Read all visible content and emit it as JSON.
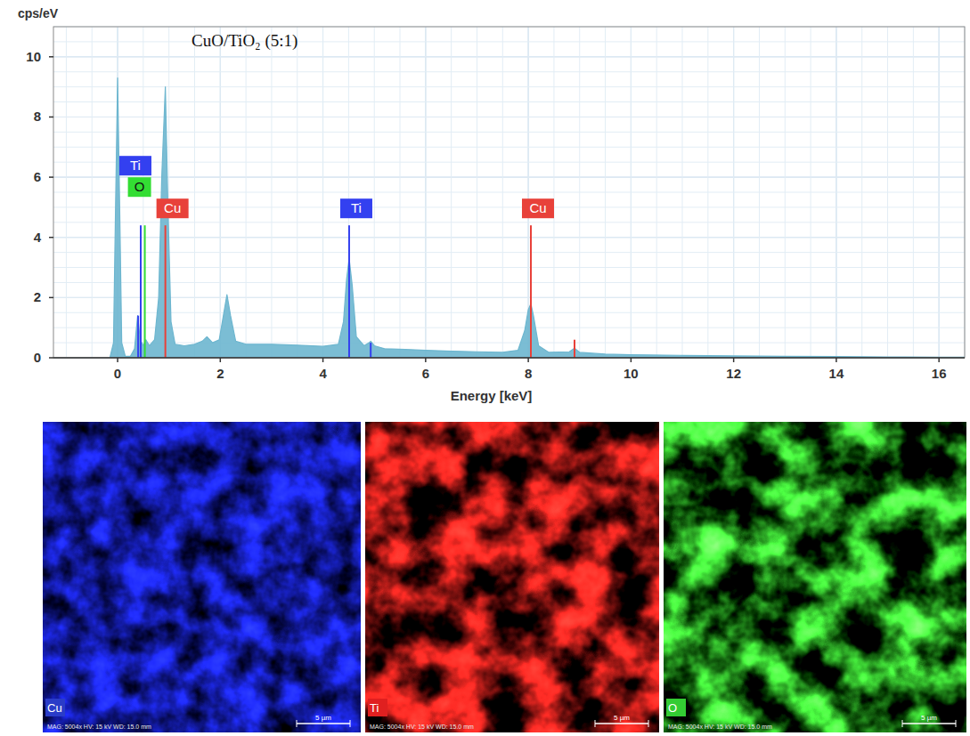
{
  "chart_data": {
    "type": "area",
    "title": "CuO/TiO₂ (5:1)",
    "y_label": "cps/eV",
    "x_label": "Energy [keV]",
    "xlim": [
      -1.25,
      16.5
    ],
    "ylim": [
      0,
      11
    ],
    "xticks": [
      0,
      2,
      4,
      6,
      8,
      10,
      12,
      14,
      16
    ],
    "yticks": [
      0,
      2,
      4,
      6,
      8,
      10
    ],
    "grid": true,
    "series": [
      {
        "color": "#6db6cf",
        "x": [
          -0.15,
          -0.08,
          -0.04,
          0,
          0.04,
          0.08,
          0.15,
          0.25,
          0.33,
          0.39,
          0.44,
          0.5,
          0.55,
          0.62,
          0.72,
          0.8,
          0.86,
          0.93,
          0.98,
          1.04,
          1.12,
          1.3,
          1.5,
          1.65,
          1.74,
          1.85,
          1.98,
          2.05,
          2.13,
          2.2,
          2.3,
          2.5,
          3,
          3.5,
          4,
          4.3,
          4.4,
          4.46,
          4.51,
          4.57,
          4.65,
          4.8,
          4.9,
          4.93,
          5.0,
          5.2,
          5.6,
          6,
          6.5,
          7,
          7.5,
          7.8,
          7.93,
          8,
          8.05,
          8.1,
          8.2,
          8.4,
          8.8,
          8.9,
          9.0,
          9.5,
          10,
          11,
          12,
          13,
          14,
          15,
          16,
          16.5
        ],
        "values": [
          0,
          0.5,
          5,
          9.3,
          5,
          0.5,
          0.05,
          0.05,
          0.3,
          1.4,
          0.6,
          0.4,
          0.6,
          0.4,
          0.6,
          2,
          6,
          9.0,
          5,
          1.2,
          0.45,
          0.4,
          0.45,
          0.55,
          0.7,
          0.5,
          0.6,
          1.3,
          2.1,
          1.4,
          0.55,
          0.45,
          0.45,
          0.42,
          0.38,
          0.45,
          1.2,
          2.6,
          3.3,
          2.4,
          0.7,
          0.4,
          0.5,
          0.55,
          0.4,
          0.3,
          0.28,
          0.25,
          0.22,
          0.2,
          0.18,
          0.25,
          0.9,
          1.6,
          1.8,
          1.4,
          0.4,
          0.18,
          0.2,
          0.32,
          0.18,
          0.12,
          0.1,
          0.08,
          0.06,
          0.05,
          0.04,
          0.03,
          0.02,
          0.02
        ]
      }
    ],
    "annotations": [
      {
        "label": "Ti",
        "x": 0.45,
        "height": 4.4,
        "color": "#3340f0"
      },
      {
        "label": "O",
        "x": 0.53,
        "height": 4.4,
        "color": "#33dd33"
      },
      {
        "label": "Cu",
        "x": 0.93,
        "height": 4.4,
        "color": "#e8413a"
      },
      {
        "label": "Ti",
        "x": 4.51,
        "height": 4.4,
        "color": "#3340f0"
      },
      {
        "label": "Cu",
        "x": 8.05,
        "height": 4.4,
        "color": "#e8413a"
      }
    ],
    "minor_lines": [
      {
        "x": 0.4,
        "height": 1.4,
        "color": "#3340f0"
      },
      {
        "x": 4.93,
        "height": 0.5,
        "color": "#3340f0"
      },
      {
        "x": 8.9,
        "height": 0.6,
        "color": "#e8413a"
      }
    ]
  },
  "maps": [
    {
      "label": "Cu",
      "color": "#2a3cc8",
      "info": "MAG: 5004x  HV: 15 kV  WD: 15.0 mm",
      "scale": "5 µm"
    },
    {
      "label": "Ti",
      "color": "#e02020",
      "info": "MAG: 5004x  HV: 15 kV  WD: 15.0 mm",
      "scale": "5 µm"
    },
    {
      "label": "O",
      "color": "#33cc33",
      "info": "MAG: 5004x  HV: 15 kV  WD: 15.0 mm",
      "scale": "5 µm"
    }
  ]
}
